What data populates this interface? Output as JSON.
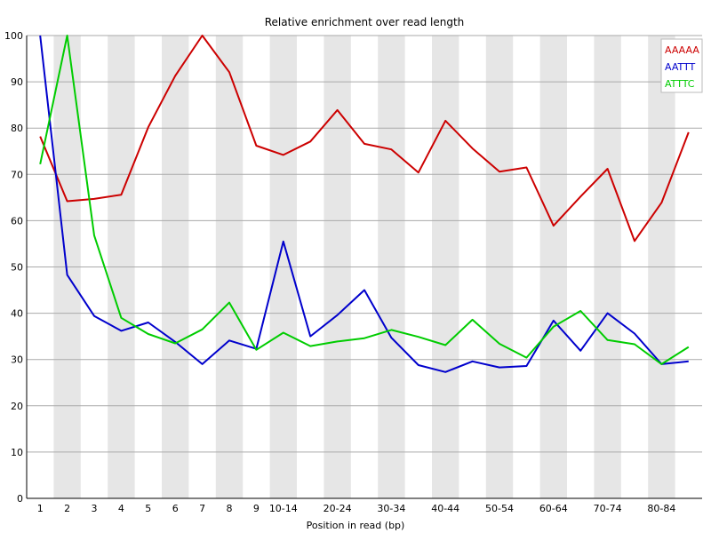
{
  "chart_data": {
    "type": "line",
    "title": "Relative enrichment over read length",
    "xlabel": "Position in read (bp)",
    "ylabel": "",
    "ylim": [
      0,
      100
    ],
    "yticks": [
      0,
      10,
      20,
      30,
      40,
      50,
      60,
      70,
      80,
      90,
      100
    ],
    "categories": [
      "1",
      "2",
      "3",
      "4",
      "5",
      "6",
      "7",
      "8",
      "9",
      "10-14",
      "15-19",
      "20-24",
      "25-29",
      "30-34",
      "35-39",
      "40-44",
      "45-49",
      "50-54",
      "55-59",
      "60-64",
      "65-69",
      "70-74",
      "75-79",
      "80-84",
      "85-89"
    ],
    "x_tick_labels": [
      "1",
      "2",
      "3",
      "4",
      "5",
      "6",
      "7",
      "8",
      "9",
      "10-14",
      "",
      "20-24",
      "",
      "30-34",
      "",
      "40-44",
      "",
      "50-54",
      "",
      "60-64",
      "",
      "70-74",
      "",
      "80-84",
      ""
    ],
    "grid": "horizontal",
    "background": "alternating vertical gray bands",
    "legend_position": "top-right",
    "series": [
      {
        "name": "AAAAA",
        "color": "#cc0000",
        "values": [
          78.2,
          64.2,
          64.7,
          65.6,
          80.2,
          91.3,
          100,
          92.1,
          76.2,
          74.2,
          77.1,
          83.9,
          76.6,
          75.4,
          70.4,
          81.6,
          75.6,
          70.6,
          71.5,
          58.9,
          65.2,
          71.2,
          55.6,
          63.9,
          79.1
        ]
      },
      {
        "name": "AATTT",
        "color": "#0000cc",
        "values": [
          100,
          48.3,
          39.4,
          36.2,
          38.0,
          33.8,
          29.0,
          34.1,
          32.3,
          55.5,
          35.0,
          39.6,
          45.0,
          34.7,
          28.8,
          27.3,
          29.6,
          28.3,
          28.6,
          38.4,
          31.9,
          40.0,
          35.6,
          29.0,
          29.6
        ]
      },
      {
        "name": "ATTTC",
        "color": "#00cc00",
        "values": [
          72.2,
          100,
          56.8,
          39.0,
          35.5,
          33.5,
          36.5,
          42.3,
          32.1,
          35.8,
          32.9,
          33.9,
          34.6,
          36.4,
          34.9,
          33.1,
          38.6,
          33.4,
          30.4,
          37.1,
          40.5,
          34.2,
          33.3,
          29.0,
          32.7
        ]
      }
    ]
  }
}
